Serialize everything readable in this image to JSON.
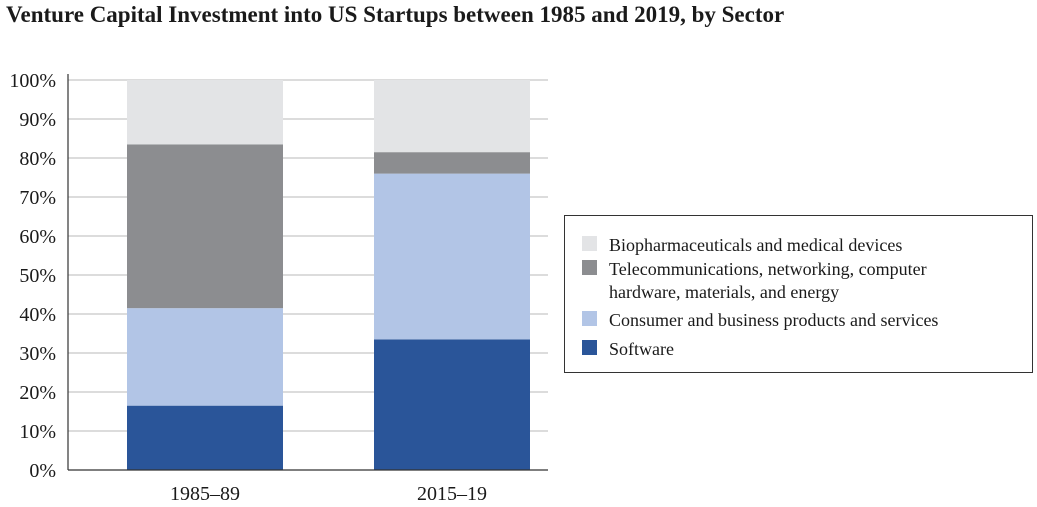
{
  "chart_data": {
    "type": "bar",
    "stacked": true,
    "title": "Venture Capital Investment into US Startups between 1985 and 2019, by Sector",
    "xlabel": "",
    "ylabel": "",
    "ylim": [
      0,
      100
    ],
    "y_tick_labels": [
      "0%",
      "10%",
      "20%",
      "30%",
      "40%",
      "50%",
      "60%",
      "70%",
      "80%",
      "90%",
      "100%"
    ],
    "categories": [
      "1985–89",
      "2015–19"
    ],
    "series": [
      {
        "name": "Software",
        "color": "#2a5599",
        "values": [
          16.5,
          33.5
        ]
      },
      {
        "name": "Consumer and business products and services",
        "color": "#b2c5e6",
        "values": [
          25,
          42.5
        ]
      },
      {
        "name": "Telecommunications, networking, computer hardware, materials, and energy",
        "color": "#8c8d90",
        "values": [
          42,
          5.5
        ],
        "legend_lines": [
          "Telecommunications, networking, computer",
          "hardware, materials, and energy"
        ]
      },
      {
        "name": "Biopharmaceuticals and medical devices",
        "color": "#e3e4e6",
        "values": [
          16.5,
          18.5
        ]
      }
    ],
    "legend_order": [
      3,
      2,
      1,
      0
    ],
    "legend_position": "right",
    "grid": true,
    "gridline_color": "#b9b9b9"
  }
}
